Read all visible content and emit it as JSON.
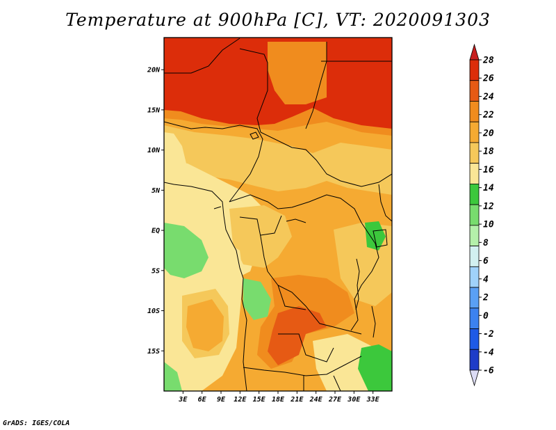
{
  "title": "Temperature at 900hPa [C], VT: 2020091303",
  "footer": "GrADS: IGES/COLA",
  "map": {
    "lon_range": [
      0,
      36
    ],
    "lat_range": [
      -20,
      24
    ],
    "lat_ticks": [
      {
        "value": 20,
        "label": "20N"
      },
      {
        "value": 15,
        "label": "15N"
      },
      {
        "value": 10,
        "label": "10N"
      },
      {
        "value": 5,
        "label": "5N"
      },
      {
        "value": 0,
        "label": "EQ"
      },
      {
        "value": -5,
        "label": "5S"
      },
      {
        "value": -10,
        "label": "10S"
      },
      {
        "value": -15,
        "label": "15S"
      }
    ],
    "lon_ticks": [
      {
        "value": 3,
        "label": "3E"
      },
      {
        "value": 6,
        "label": "6E"
      },
      {
        "value": 9,
        "label": "9E"
      },
      {
        "value": 12,
        "label": "12E"
      },
      {
        "value": 15,
        "label": "15E"
      },
      {
        "value": 18,
        "label": "18E"
      },
      {
        "value": 21,
        "label": "21E"
      },
      {
        "value": 24,
        "label": "24E"
      },
      {
        "value": 27,
        "label": "27E"
      },
      {
        "value": 30,
        "label": "30E"
      },
      {
        "value": 33,
        "label": "33E"
      }
    ]
  },
  "colorbar": {
    "colors": [
      "#1e1e8c",
      "#1e3cc8",
      "#1e5ae6",
      "#3c82f0",
      "#5aa0f5",
      "#a0d2fa",
      "#d2f0f0",
      "#b4f0aa",
      "#78dc6e",
      "#3cc83c",
      "#fae696",
      "#f5c85a",
      "#f5aa32",
      "#f08c1e",
      "#e65a14",
      "#dc2d0a",
      "#c81e1e"
    ],
    "labels": [
      "28",
      "26",
      "24",
      "22",
      "20",
      "18",
      "16",
      "14",
      "12",
      "10",
      "8",
      "6",
      "4",
      "2",
      "0",
      "-2",
      "-4",
      "-6"
    ]
  }
}
